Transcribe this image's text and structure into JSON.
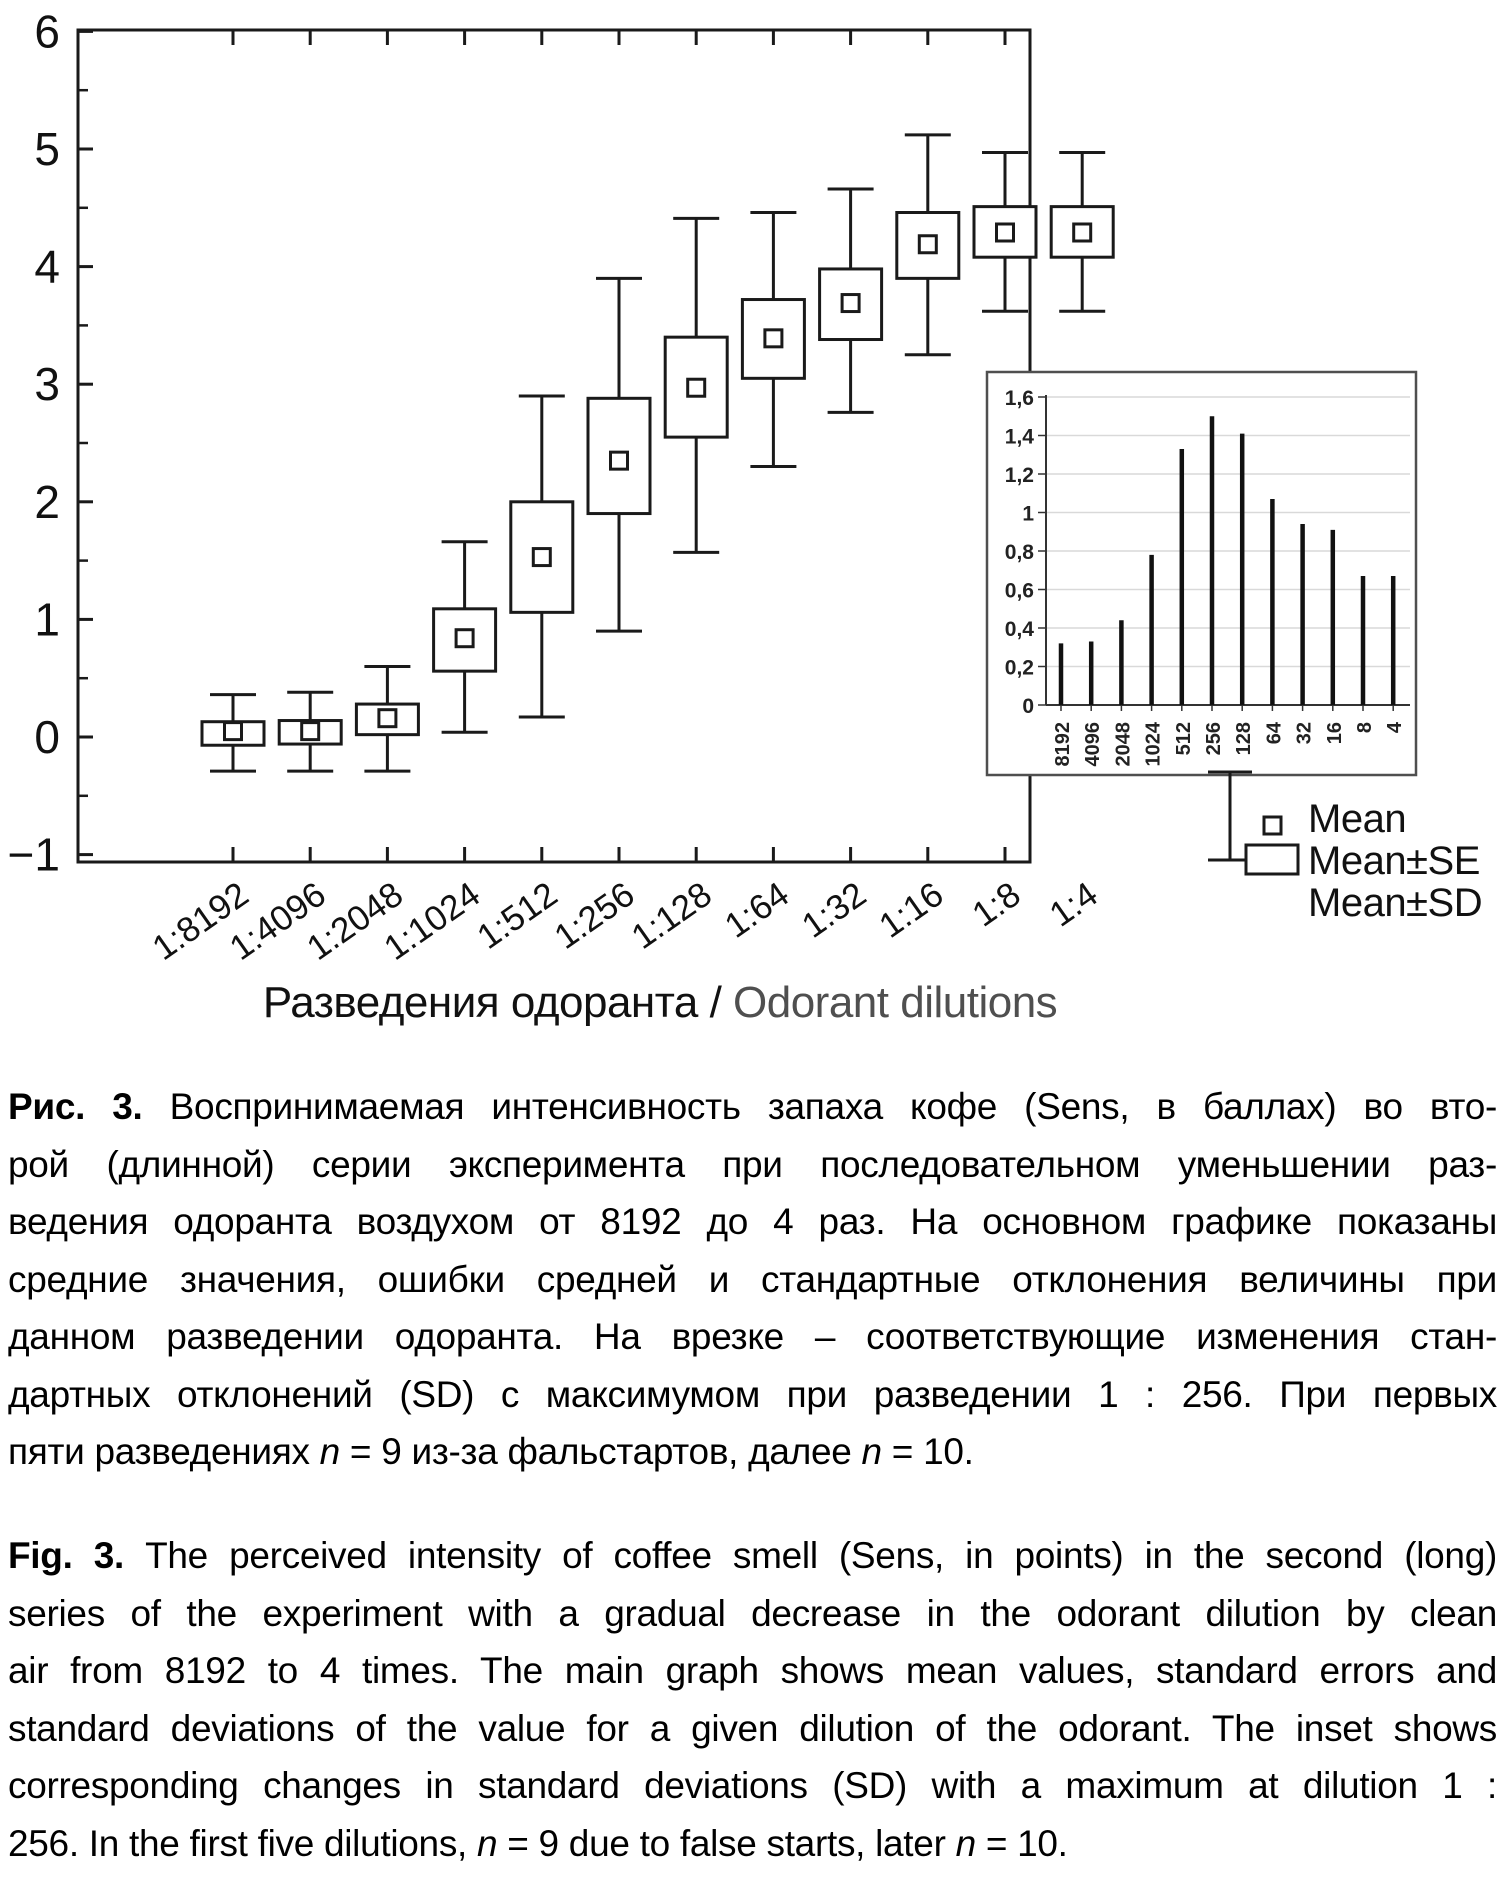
{
  "figure": {
    "axis_title": {
      "ru": "Разведения одоранта / ",
      "en": "Odorant dilutions"
    },
    "legend": {
      "items": [
        {
          "label": "Mean",
          "symbol": "mean-square-icon"
        },
        {
          "label": "Mean±SE",
          "symbol": "se-box-icon"
        },
        {
          "label": "Mean±SD",
          "symbol": "sd-whisker-icon"
        }
      ]
    },
    "colors": {
      "line": "#1a1a1a",
      "inset_bar": "#111111",
      "inset_grid": "#d9d9d9",
      "inset_border": "#4f4f4f",
      "inset_axis": "#333333",
      "axis_title_en": "#4f4f4f"
    }
  },
  "chart_data": [
    {
      "type": "box-whisker",
      "title": "",
      "xlabel": "Разведения одоранта / Odorant dilutions",
      "ylabel": "",
      "categories": [
        "1:8192",
        "1:4096",
        "1:2048",
        "1:1024",
        "1:512",
        "1:256",
        "1:128",
        "1:64",
        "1:32",
        "1:16",
        "1:8",
        "1:4"
      ],
      "series": [
        {
          "name": "Mean",
          "values": [
            0.05,
            0.05,
            0.16,
            0.84,
            1.53,
            2.35,
            2.97,
            3.39,
            3.69,
            4.19,
            4.29,
            4.29
          ]
        },
        {
          "name": "Mean-SE",
          "values": [
            -0.07,
            -0.06,
            0.02,
            0.56,
            1.06,
            1.9,
            2.55,
            3.05,
            3.38,
            3.9,
            4.08,
            4.08
          ]
        },
        {
          "name": "Mean+SE",
          "values": [
            0.13,
            0.14,
            0.28,
            1.09,
            2.0,
            2.88,
            3.4,
            3.72,
            3.98,
            4.46,
            4.51,
            4.51
          ]
        },
        {
          "name": "Mean-SD",
          "values": [
            -0.29,
            -0.29,
            -0.29,
            0.04,
            0.17,
            0.9,
            1.57,
            2.3,
            2.76,
            3.25,
            3.62,
            3.62
          ]
        },
        {
          "name": "Mean+SD",
          "values": [
            0.36,
            0.38,
            0.6,
            1.66,
            2.9,
            3.9,
            4.41,
            4.46,
            4.66,
            5.12,
            4.97,
            4.97
          ]
        }
      ],
      "ylim": [
        -1,
        6
      ],
      "ytick_labels": [
        "6",
        "5",
        "4",
        "3",
        "2",
        "1",
        "0",
        "−1"
      ],
      "ytick_values": [
        6,
        5,
        4,
        3,
        2,
        1,
        0,
        -1
      ],
      "grid": false,
      "legend_position": "bottom-right",
      "legend_entries": [
        "Mean",
        "Mean±SE",
        "Mean±SD"
      ]
    },
    {
      "type": "bar",
      "title": "",
      "xlabel": "",
      "ylabel": "",
      "categories": [
        "8192",
        "4096",
        "2048",
        "1024",
        "512",
        "256",
        "128",
        "64",
        "32",
        "16",
        "8",
        "4"
      ],
      "values": [
        0.32,
        0.33,
        0.44,
        0.78,
        1.33,
        1.5,
        1.41,
        1.07,
        0.94,
        0.91,
        0.67,
        0.67
      ],
      "ylim": [
        0,
        1.6
      ],
      "ytick_labels": [
        "0",
        "0,2",
        "0,4",
        "0,6",
        "0,8",
        "1",
        "1,2",
        "1,4",
        "1,6"
      ],
      "ytick_values": [
        0,
        0.2,
        0.4,
        0.6,
        0.8,
        1.0,
        1.2,
        1.4,
        1.6
      ],
      "grid": true,
      "legend_position": "none"
    }
  ],
  "caption_ru": {
    "lines": [
      [
        [
          "b",
          "Рис. 3. "
        ],
        [
          "r",
          "Воспринимаемая интенсивность запаха кофе (Sens, в баллах) во вто-"
        ]
      ],
      [
        [
          "r",
          "рой (длинной) серии эксперимента при последовательном уменьшении раз-"
        ]
      ],
      [
        [
          "r",
          "ведения одоранта воздухом от 8192 до 4 раз. На основном графике показаны"
        ]
      ],
      [
        [
          "r",
          "средние значения, ошибки средней и стандартные отклонения величины при"
        ]
      ],
      [
        [
          "r",
          "данном разведении одоранта. На врезке – соответствующие изменения стан-"
        ]
      ],
      [
        [
          "r",
          "дартных отклонений (SD) с максимумом при разведении 1 : 256. При первых"
        ]
      ],
      [
        [
          "r",
          "пяти разведениях "
        ],
        [
          "i",
          "n"
        ],
        [
          "r",
          " = 9 из-за фальстартов, далее "
        ],
        [
          "i",
          "n"
        ],
        [
          "r",
          " = 10."
        ]
      ]
    ]
  },
  "caption_en": {
    "lines": [
      [
        [
          "b",
          "Fig. 3. "
        ],
        [
          "r",
          "The perceived intensity of coffee smell (Sens, in points) in the second (long)"
        ]
      ],
      [
        [
          "r",
          "series of the experiment with a gradual decrease in the odorant dilution by clean"
        ]
      ],
      [
        [
          "r",
          "air from 8192 to 4 times. The main graph shows mean values, standard errors and"
        ]
      ],
      [
        [
          "r",
          "standard deviations of the value for a given dilution of the odorant. The inset shows"
        ]
      ],
      [
        [
          "r",
          "corresponding changes in standard deviations (SD) with a maximum at dilution 1 :"
        ]
      ],
      [
        [
          "r",
          "256. In the first five dilutions, "
        ],
        [
          "i",
          "n"
        ],
        [
          "r",
          " = 9 due to false starts, later "
        ],
        [
          "i",
          "n"
        ],
        [
          "r",
          " = 10."
        ]
      ]
    ]
  }
}
